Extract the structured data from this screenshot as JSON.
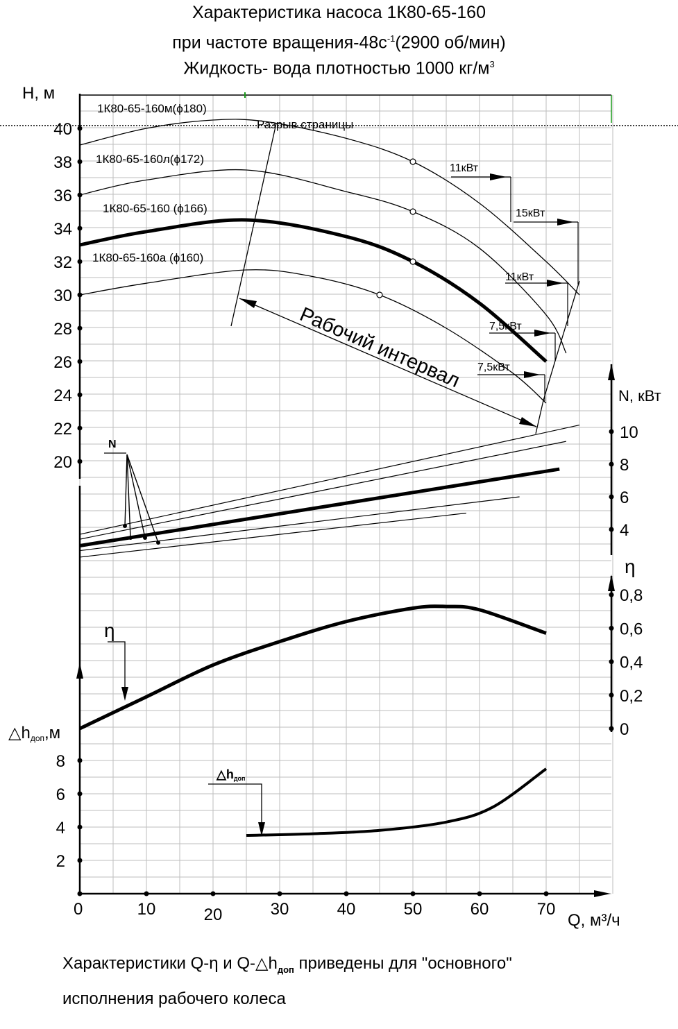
{
  "header": {
    "line1": "Характеристика насоса 1К80-65-160",
    "line2_a": "при частоте вращения-48с",
    "line2_sup": "-1",
    "line2_b": "(2900 об/мин)",
    "line3_a": "Жидкость- вода плотностью 1000 кг/м",
    "line3_sup": "3"
  },
  "page_break_label": "Разрыв страницы",
  "footer": {
    "line1_a": "Характеристики Q-η и Q-",
    "line1_sym": "△h",
    "line1_sub": "доп",
    "line1_b": " приведены для \"основного\"",
    "line2": "исполнения рабочего колеса"
  },
  "chart_data": {
    "type": "line",
    "x_axis": {
      "label": "Q, м³/ч",
      "range": [
        0,
        80
      ],
      "ticks": [
        0,
        10,
        20,
        30,
        40,
        50,
        60,
        70
      ]
    },
    "axes": {
      "H": {
        "label": "H, м",
        "range": [
          0,
          40
        ],
        "ticks": [
          20,
          22,
          24,
          26,
          28,
          30,
          32,
          34,
          36,
          38,
          40
        ]
      },
      "N": {
        "label": "N, кВт",
        "ticks": [
          4,
          6,
          8,
          10
        ]
      },
      "eta": {
        "label": "η",
        "ticks": [
          "0",
          "0,2",
          "0,4",
          "0,6",
          "0,8"
        ]
      },
      "dh": {
        "label": "△hдоп,м",
        "ticks": [
          2,
          4,
          6,
          8
        ]
      }
    },
    "grid": true,
    "H_series": [
      {
        "name": "1К80-65-160м(ϕ180)",
        "bold": false,
        "points": [
          [
            0,
            39
          ],
          [
            10,
            40
          ],
          [
            20,
            40.5
          ],
          [
            28,
            40.4
          ],
          [
            40,
            39.4
          ],
          [
            50,
            38
          ],
          [
            60,
            35.5
          ],
          [
            70,
            32
          ],
          [
            75,
            30
          ]
        ]
      },
      {
        "name": "1К80-65-160л(ϕ172)",
        "bold": false,
        "points": [
          [
            0,
            36
          ],
          [
            10,
            36.9
          ],
          [
            25,
            37.5
          ],
          [
            40,
            36.2
          ],
          [
            50,
            35
          ],
          [
            60,
            32.8
          ],
          [
            70,
            28.8
          ],
          [
            73,
            26.5
          ]
        ]
      },
      {
        "name": "1К80-65-160 (ϕ166)",
        "bold": true,
        "points": [
          [
            0,
            33
          ],
          [
            10,
            33.8
          ],
          [
            25,
            34.5
          ],
          [
            40,
            33.5
          ],
          [
            50,
            32
          ],
          [
            60,
            29.5
          ],
          [
            70,
            26
          ]
        ]
      },
      {
        "name": "1К80-65-160а (ϕ160)",
        "bold": false,
        "points": [
          [
            0,
            30
          ],
          [
            10,
            30.7
          ],
          [
            25,
            31.5
          ],
          [
            35,
            31.1
          ],
          [
            45,
            30
          ],
          [
            55,
            28
          ],
          [
            65,
            25.3
          ],
          [
            70,
            23.5
          ]
        ]
      }
    ],
    "power_labels": [
      "11кВт",
      "15кВт",
      "11кВт",
      "7,5кВт",
      "7,5кВт"
    ],
    "N_series": [
      {
        "points": [
          [
            0,
            3.7
          ],
          [
            75,
            10.4
          ]
        ]
      },
      {
        "points": [
          [
            0,
            3.4
          ],
          [
            73,
            9.4
          ]
        ]
      },
      {
        "points": [
          [
            0,
            3.0
          ],
          [
            72,
            7.7
          ]
        ],
        "bold": true
      },
      {
        "points": [
          [
            0,
            2.7
          ],
          [
            66,
            6.0
          ]
        ]
      },
      {
        "points": [
          [
            0,
            2.3
          ],
          [
            58,
            5.0
          ]
        ]
      }
    ],
    "N_label": "N",
    "eta_series": {
      "name": "η",
      "points": [
        [
          0,
          0
        ],
        [
          10,
          0.19
        ],
        [
          20,
          0.38
        ],
        [
          30,
          0.52
        ],
        [
          40,
          0.64
        ],
        [
          50,
          0.72
        ],
        [
          55,
          0.73
        ],
        [
          60,
          0.71
        ],
        [
          70,
          0.57
        ]
      ]
    },
    "dh_series": {
      "name": "△hдоп",
      "points": [
        [
          25,
          3.5
        ],
        [
          35,
          3.6
        ],
        [
          45,
          3.8
        ],
        [
          55,
          4.3
        ],
        [
          62,
          5.2
        ],
        [
          70,
          7.5
        ]
      ]
    },
    "working_interval_label": "Рабочий интервал"
  }
}
